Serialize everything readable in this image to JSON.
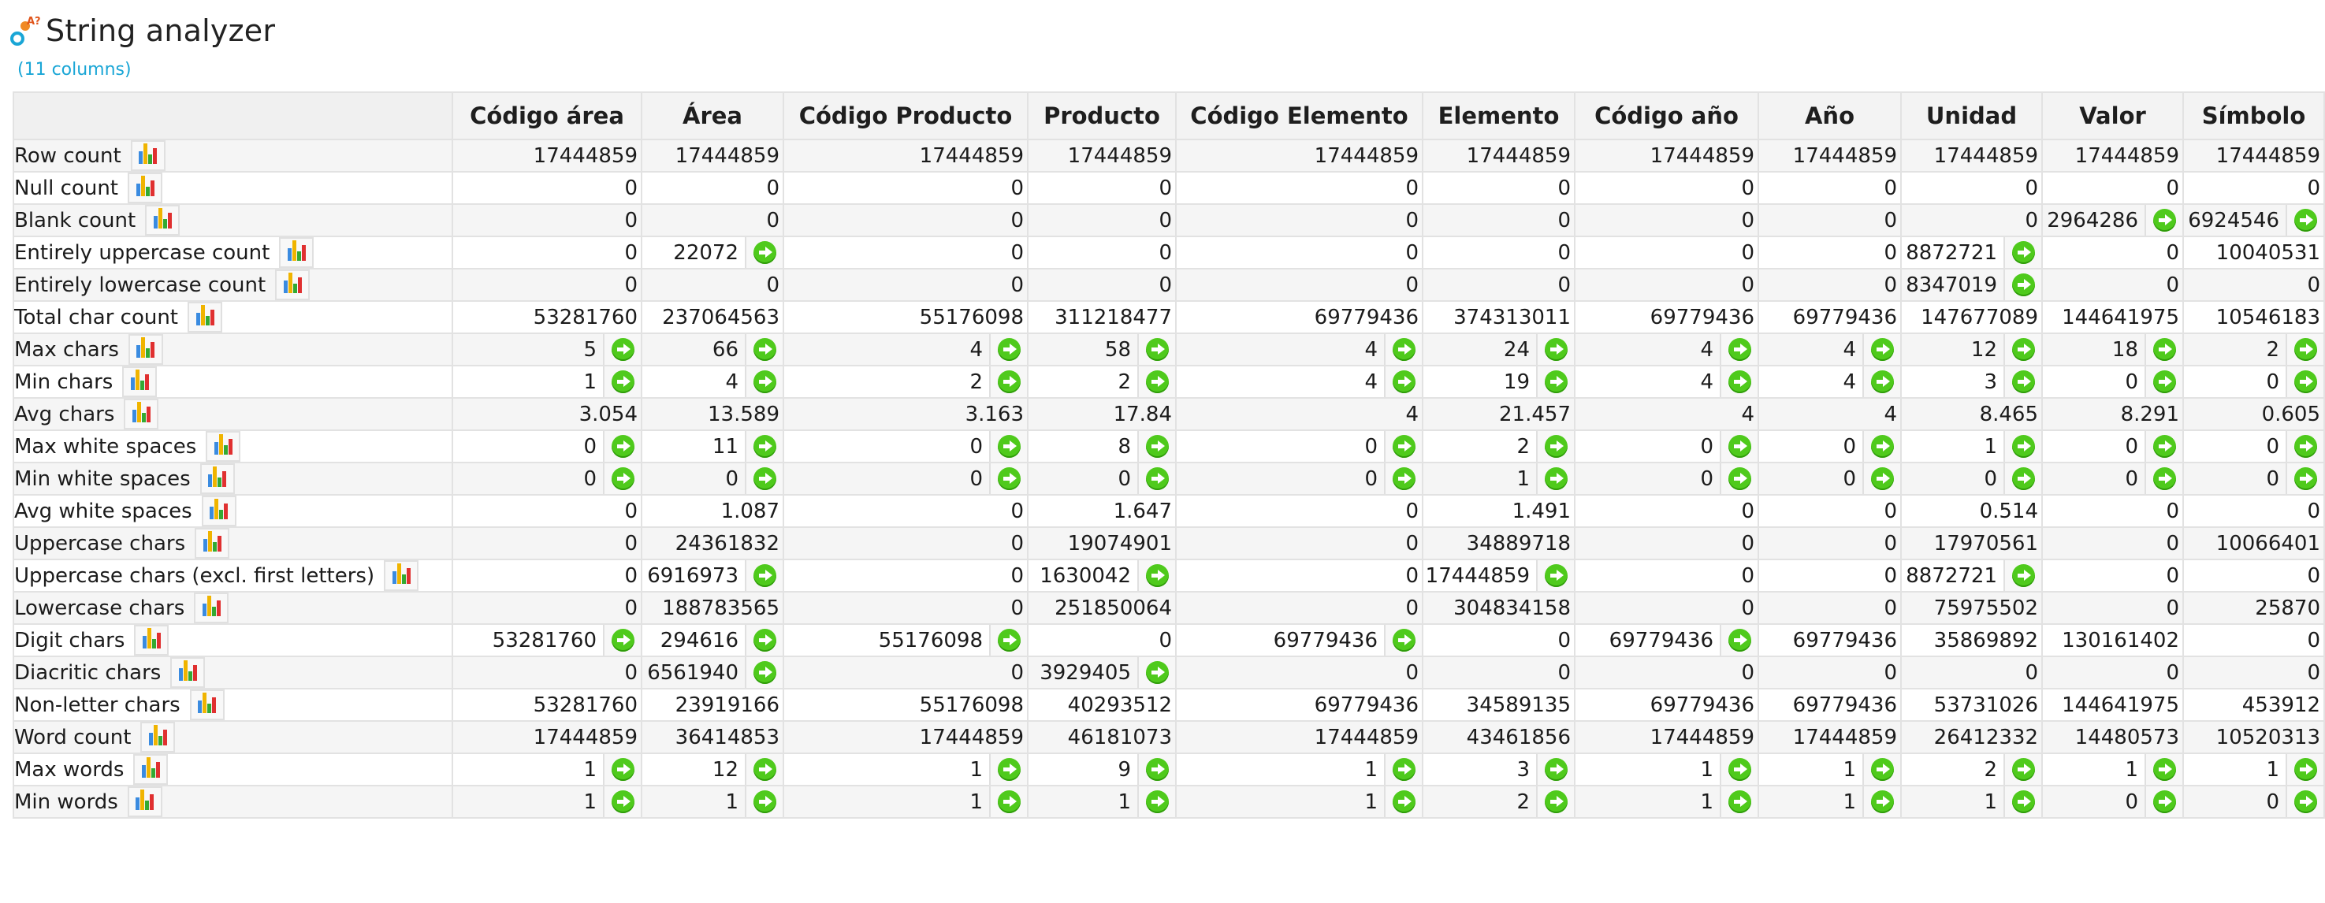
{
  "app": {
    "title": "String analyzer",
    "column_count": "(11 columns)",
    "icon": "string-analyzer-icon"
  },
  "columns": [
    "Código área",
    "Área",
    "Código Producto",
    "Producto",
    "Código Elemento",
    "Elemento",
    "Código año",
    "Año",
    "Unidad",
    "Valor",
    "Símbolo"
  ],
  "rows": [
    {
      "label": "Row count",
      "values": [
        "17444859",
        "17444859",
        "17444859",
        "17444859",
        "17444859",
        "17444859",
        "17444859",
        "17444859",
        "17444859",
        "17444859",
        "17444859"
      ],
      "go": [
        0,
        0,
        0,
        0,
        0,
        0,
        0,
        0,
        0,
        0,
        0
      ]
    },
    {
      "label": "Null count",
      "values": [
        "0",
        "0",
        "0",
        "0",
        "0",
        "0",
        "0",
        "0",
        "0",
        "0",
        "0"
      ],
      "go": [
        0,
        0,
        0,
        0,
        0,
        0,
        0,
        0,
        0,
        0,
        0
      ]
    },
    {
      "label": "Blank count",
      "values": [
        "0",
        "0",
        "0",
        "0",
        "0",
        "0",
        "0",
        "0",
        "0",
        "2964286",
        "6924546"
      ],
      "go": [
        0,
        0,
        0,
        0,
        0,
        0,
        0,
        0,
        0,
        1,
        1
      ]
    },
    {
      "label": "Entirely uppercase count",
      "values": [
        "0",
        "22072",
        "0",
        "0",
        "0",
        "0",
        "0",
        "0",
        "8872721",
        "0",
        "10040531"
      ],
      "go": [
        0,
        1,
        0,
        0,
        0,
        0,
        0,
        0,
        1,
        0,
        0
      ]
    },
    {
      "label": "Entirely lowercase count",
      "values": [
        "0",
        "0",
        "0",
        "0",
        "0",
        "0",
        "0",
        "0",
        "8347019",
        "0",
        "0"
      ],
      "go": [
        0,
        0,
        0,
        0,
        0,
        0,
        0,
        0,
        1,
        0,
        0
      ]
    },
    {
      "label": "Total char count",
      "values": [
        "53281760",
        "237064563",
        "55176098",
        "311218477",
        "69779436",
        "374313011",
        "69779436",
        "69779436",
        "147677089",
        "144641975",
        "10546183"
      ],
      "go": [
        0,
        0,
        0,
        0,
        0,
        0,
        0,
        0,
        0,
        0,
        0
      ]
    },
    {
      "label": "Max chars",
      "values": [
        "5",
        "66",
        "4",
        "58",
        "4",
        "24",
        "4",
        "4",
        "12",
        "18",
        "2"
      ],
      "go": [
        1,
        1,
        1,
        1,
        1,
        1,
        1,
        1,
        1,
        1,
        1
      ]
    },
    {
      "label": "Min chars",
      "values": [
        "1",
        "4",
        "2",
        "2",
        "4",
        "19",
        "4",
        "4",
        "3",
        "0",
        "0"
      ],
      "go": [
        1,
        1,
        1,
        1,
        1,
        1,
        1,
        1,
        1,
        1,
        1
      ]
    },
    {
      "label": "Avg chars",
      "values": [
        "3.054",
        "13.589",
        "3.163",
        "17.84",
        "4",
        "21.457",
        "4",
        "4",
        "8.465",
        "8.291",
        "0.605"
      ],
      "go": [
        0,
        0,
        0,
        0,
        0,
        0,
        0,
        0,
        0,
        0,
        0
      ]
    },
    {
      "label": "Max white spaces",
      "values": [
        "0",
        "11",
        "0",
        "8",
        "0",
        "2",
        "0",
        "0",
        "1",
        "0",
        "0"
      ],
      "go": [
        1,
        1,
        1,
        1,
        1,
        1,
        1,
        1,
        1,
        1,
        1
      ]
    },
    {
      "label": "Min white spaces",
      "values": [
        "0",
        "0",
        "0",
        "0",
        "0",
        "1",
        "0",
        "0",
        "0",
        "0",
        "0"
      ],
      "go": [
        1,
        1,
        1,
        1,
        1,
        1,
        1,
        1,
        1,
        1,
        1
      ]
    },
    {
      "label": "Avg white spaces",
      "values": [
        "0",
        "1.087",
        "0",
        "1.647",
        "0",
        "1.491",
        "0",
        "0",
        "0.514",
        "0",
        "0"
      ],
      "go": [
        0,
        0,
        0,
        0,
        0,
        0,
        0,
        0,
        0,
        0,
        0
      ]
    },
    {
      "label": "Uppercase chars",
      "values": [
        "0",
        "24361832",
        "0",
        "19074901",
        "0",
        "34889718",
        "0",
        "0",
        "17970561",
        "0",
        "10066401"
      ],
      "go": [
        0,
        0,
        0,
        0,
        0,
        0,
        0,
        0,
        0,
        0,
        0
      ]
    },
    {
      "label": "Uppercase chars (excl. first letters)",
      "values": [
        "0",
        "6916973",
        "0",
        "1630042",
        "0",
        "17444859",
        "0",
        "0",
        "8872721",
        "0",
        "0"
      ],
      "go": [
        0,
        1,
        0,
        1,
        0,
        1,
        0,
        0,
        1,
        0,
        0
      ]
    },
    {
      "label": "Lowercase chars",
      "values": [
        "0",
        "188783565",
        "0",
        "251850064",
        "0",
        "304834158",
        "0",
        "0",
        "75975502",
        "0",
        "25870"
      ],
      "go": [
        0,
        0,
        0,
        0,
        0,
        0,
        0,
        0,
        0,
        0,
        0
      ]
    },
    {
      "label": "Digit chars",
      "values": [
        "53281760",
        "294616",
        "55176098",
        "0",
        "69779436",
        "0",
        "69779436",
        "69779436",
        "35869892",
        "130161402",
        "0"
      ],
      "go": [
        1,
        1,
        1,
        0,
        1,
        0,
        1,
        0,
        0,
        0,
        0
      ]
    },
    {
      "label": "Diacritic chars",
      "values": [
        "0",
        "6561940",
        "0",
        "3929405",
        "0",
        "0",
        "0",
        "0",
        "0",
        "0",
        "0"
      ],
      "go": [
        0,
        1,
        0,
        1,
        0,
        0,
        0,
        0,
        0,
        0,
        0
      ]
    },
    {
      "label": "Non-letter chars",
      "values": [
        "53281760",
        "23919166",
        "55176098",
        "40293512",
        "69779436",
        "34589135",
        "69779436",
        "69779436",
        "53731026",
        "144641975",
        "453912"
      ],
      "go": [
        0,
        0,
        0,
        0,
        0,
        0,
        0,
        0,
        0,
        0,
        0
      ]
    },
    {
      "label": "Word count",
      "values": [
        "17444859",
        "36414853",
        "17444859",
        "46181073",
        "17444859",
        "43461856",
        "17444859",
        "17444859",
        "26412332",
        "14480573",
        "10520313"
      ],
      "go": [
        0,
        0,
        0,
        0,
        0,
        0,
        0,
        0,
        0,
        0,
        0
      ]
    },
    {
      "label": "Max words",
      "values": [
        "1",
        "12",
        "1",
        "9",
        "1",
        "3",
        "1",
        "1",
        "2",
        "1",
        "1"
      ],
      "go": [
        1,
        1,
        1,
        1,
        1,
        1,
        1,
        1,
        1,
        1,
        1
      ]
    },
    {
      "label": "Min words",
      "values": [
        "1",
        "1",
        "1",
        "1",
        "1",
        "2",
        "1",
        "1",
        "1",
        "0",
        "0"
      ],
      "go": [
        1,
        1,
        1,
        1,
        1,
        1,
        1,
        1,
        1,
        1,
        1
      ]
    }
  ],
  "colors": {
    "accent_link": "#1aa6d6",
    "go_button": "#4fca1c"
  },
  "icons": {
    "row_chart": "bar-chart-icon",
    "cell_action": "green-arrow-icon"
  }
}
